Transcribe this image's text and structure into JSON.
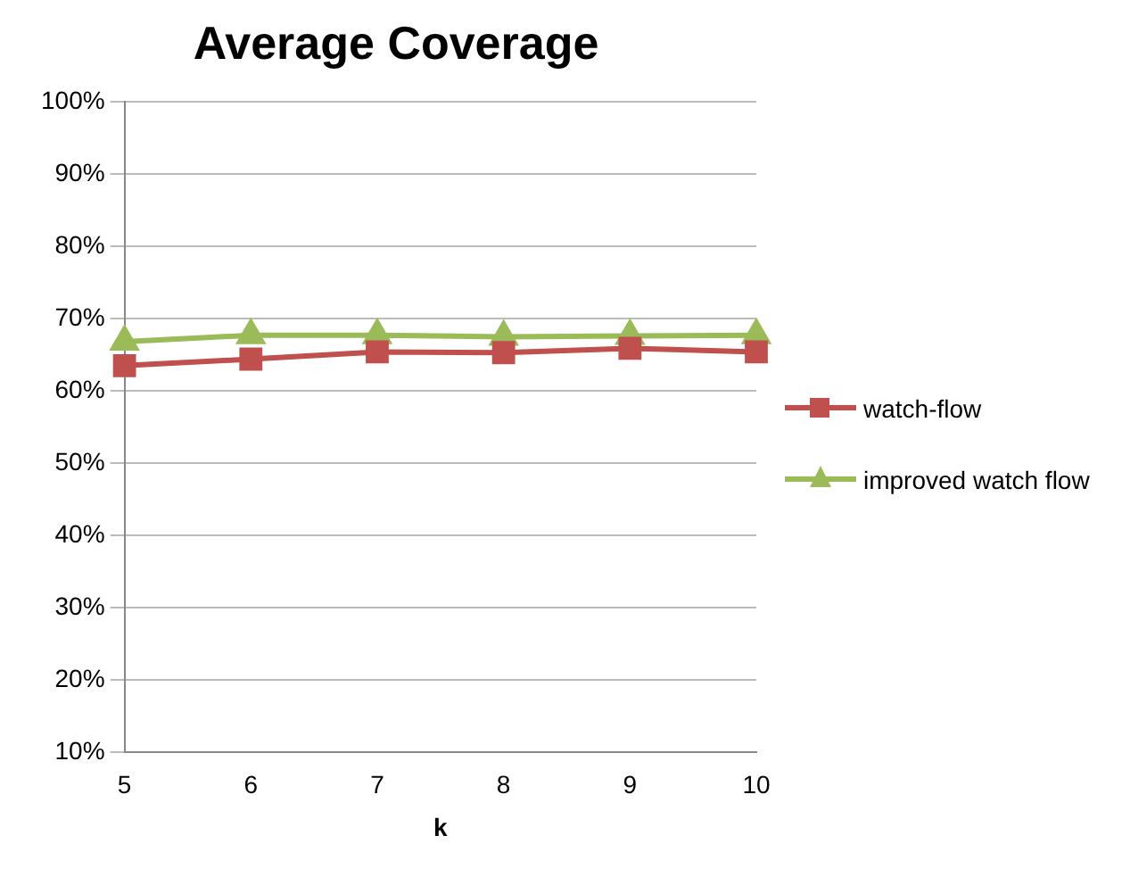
{
  "chart_data": {
    "type": "line",
    "title": "Average Coverage",
    "xlabel": "k",
    "categories": [
      "5",
      "6",
      "7",
      "8",
      "9",
      "10"
    ],
    "series": [
      {
        "name": "watch-flow",
        "color": "#c0504d",
        "marker": "square",
        "values": [
          63.5,
          64.4,
          65.4,
          65.3,
          65.9,
          65.4
        ]
      },
      {
        "name": "improved watch flow",
        "color": "#9bbb59",
        "marker": "triangle",
        "values": [
          66.8,
          67.7,
          67.7,
          67.5,
          67.6,
          67.7
        ]
      }
    ],
    "ylim": [
      10,
      100
    ],
    "yticks": [
      {
        "value": 10,
        "label": "10%"
      },
      {
        "value": 20,
        "label": "20%"
      },
      {
        "value": 30,
        "label": "30%"
      },
      {
        "value": 40,
        "label": "40%"
      },
      {
        "value": 50,
        "label": "50%"
      },
      {
        "value": 60,
        "label": "60%"
      },
      {
        "value": 70,
        "label": "70%"
      },
      {
        "value": 80,
        "label": "80%"
      },
      {
        "value": 90,
        "label": "90%"
      },
      {
        "value": 100,
        "label": "100%"
      }
    ],
    "grid": "y",
    "legend": "right"
  }
}
